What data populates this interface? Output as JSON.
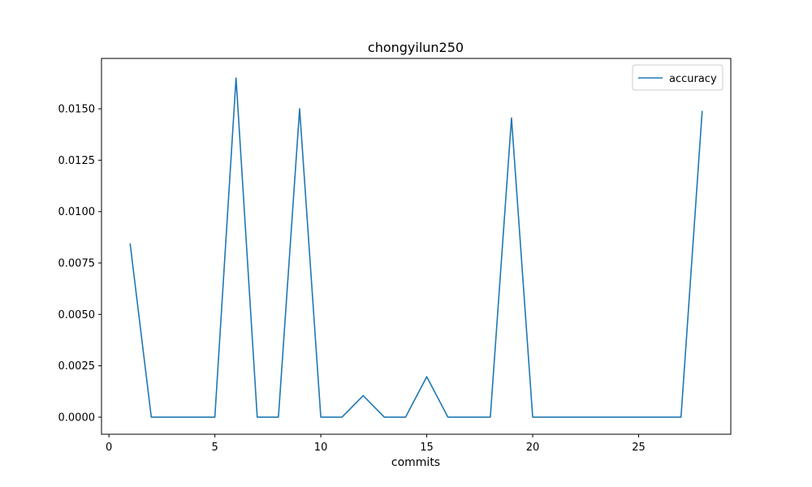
{
  "chart_data": {
    "type": "line",
    "title": "chongyilun250",
    "xlabel": "commits",
    "ylabel": "",
    "xlim": [
      -0.35,
      29.35
    ],
    "ylim": [
      -0.00083,
      0.01745
    ],
    "xticks": [
      0,
      5,
      10,
      15,
      20,
      25
    ],
    "xtick_labels": [
      "0",
      "5",
      "10",
      "15",
      "20",
      "25"
    ],
    "yticks": [
      0.0,
      0.0025,
      0.005,
      0.0075,
      0.01,
      0.0125,
      0.015
    ],
    "ytick_labels": [
      "0.0000",
      "0.0025",
      "0.0050",
      "0.0075",
      "0.0100",
      "0.0125",
      "0.0150"
    ],
    "grid": false,
    "legend_position": "upper right",
    "series": [
      {
        "name": "accuracy",
        "color": "#1f77b4",
        "x": [
          1,
          2,
          3,
          4,
          5,
          6,
          7,
          8,
          9,
          10,
          11,
          12,
          13,
          14,
          15,
          16,
          17,
          18,
          19,
          20,
          21,
          22,
          23,
          24,
          25,
          26,
          27,
          28
        ],
        "y": [
          0.00845,
          0.0,
          0.0,
          0.0,
          0.0,
          0.0165,
          0.0,
          0.0,
          0.015,
          0.0,
          0.0,
          0.00105,
          0.0,
          0.0,
          0.00197,
          0.0,
          0.0,
          0.0,
          0.01455,
          0.0,
          0.0,
          0.0,
          0.0,
          0.0,
          0.0,
          0.0,
          0.0,
          0.0149
        ]
      }
    ]
  }
}
